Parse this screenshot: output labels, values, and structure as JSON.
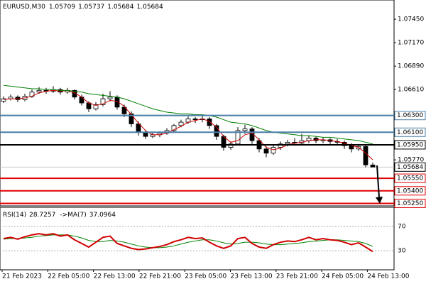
{
  "chart_data": {
    "type": "candlestick",
    "symbol": "EURUSD,M30",
    "ylim": [
      1.0522,
      1.0768
    ],
    "yticks": [
      {
        "value": 1.0745,
        "label": "1.07450"
      },
      {
        "value": 1.0717,
        "label": "1.07170"
      },
      {
        "value": 1.0689,
        "label": "1.06890"
      },
      {
        "value": 1.0661,
        "label": "1.06610"
      },
      {
        "value": 1.0577,
        "label": "1.05770"
      }
    ],
    "x_labels": [
      "21 Feb 2023",
      "22 Feb 05:00",
      "22 Feb 13:00",
      "22 Feb 21:00",
      "23 Feb 05:00",
      "23 Feb 13:00",
      "23 Feb 21:00",
      "24 Feb 05:00",
      "24 Feb 13:00"
    ],
    "candles": [
      [
        1.0647,
        1.0653,
        1.0645,
        1.065
      ],
      [
        1.065,
        1.0655,
        1.0648,
        1.0652
      ],
      [
        1.0652,
        1.0654,
        1.0646,
        1.0649
      ],
      [
        1.0649,
        1.0656,
        1.0647,
        1.0653
      ],
      [
        1.0653,
        1.0661,
        1.0651,
        1.0658
      ],
      [
        1.0658,
        1.0664,
        1.0656,
        1.066
      ],
      [
        1.066,
        1.0663,
        1.0656,
        1.0659
      ],
      [
        1.0659,
        1.0665,
        1.0657,
        1.0661
      ],
      [
        1.0661,
        1.0663,
        1.0655,
        1.0658
      ],
      [
        1.0658,
        1.0663,
        1.0656,
        1.066
      ],
      [
        1.066,
        1.0661,
        1.0649,
        1.0652
      ],
      [
        1.0652,
        1.0655,
        1.0642,
        1.0645
      ],
      [
        1.0645,
        1.0647,
        1.0634,
        1.0638
      ],
      [
        1.0638,
        1.0646,
        1.0636,
        1.0643
      ],
      [
        1.0643,
        1.0656,
        1.0641,
        1.065
      ],
      [
        1.065,
        1.0659,
        1.0647,
        1.0652
      ],
      [
        1.0652,
        1.0654,
        1.0637,
        1.064
      ],
      [
        1.064,
        1.0643,
        1.0628,
        1.0632
      ],
      [
        1.0632,
        1.0635,
        1.0616,
        1.062
      ],
      [
        1.062,
        1.0623,
        1.0606,
        1.061
      ],
      [
        1.061,
        1.0612,
        1.0602,
        1.0605
      ],
      [
        1.0605,
        1.061,
        1.0603,
        1.0607
      ],
      [
        1.0607,
        1.0611,
        1.0604,
        1.0609
      ],
      [
        1.0609,
        1.0615,
        1.0607,
        1.0612
      ],
      [
        1.0612,
        1.062,
        1.061,
        1.0618
      ],
      [
        1.0618,
        1.0625,
        1.0616,
        1.0622
      ],
      [
        1.0622,
        1.0629,
        1.062,
        1.0626
      ],
      [
        1.0626,
        1.0628,
        1.0621,
        1.0625
      ],
      [
        1.0625,
        1.063,
        1.0622,
        1.0626
      ],
      [
        1.0626,
        1.0628,
        1.0614,
        1.0618
      ],
      [
        1.0618,
        1.062,
        1.0601,
        1.0605
      ],
      [
        1.0605,
        1.0607,
        1.0588,
        1.0592
      ],
      [
        1.0592,
        1.0599,
        1.0589,
        1.0596
      ],
      [
        1.0596,
        1.0616,
        1.0594,
        1.0612
      ],
      [
        1.0612,
        1.0619,
        1.0608,
        1.0614
      ],
      [
        1.0614,
        1.0616,
        1.0596,
        1.06
      ],
      [
        1.06,
        1.0603,
        1.0586,
        1.059
      ],
      [
        1.059,
        1.0593,
        1.058,
        1.0585
      ],
      [
        1.0585,
        1.0595,
        1.0583,
        1.0592
      ],
      [
        1.0592,
        1.0599,
        1.0589,
        1.0596
      ],
      [
        1.0596,
        1.0601,
        1.0593,
        1.0598
      ],
      [
        1.0598,
        1.0603,
        1.0594,
        1.0597
      ],
      [
        1.0597,
        1.0608,
        1.0595,
        1.06
      ],
      [
        1.06,
        1.0606,
        1.0597,
        1.0603
      ],
      [
        1.0603,
        1.0605,
        1.0597,
        1.06
      ],
      [
        1.06,
        1.0604,
        1.0597,
        1.0601
      ],
      [
        1.0601,
        1.0603,
        1.0596,
        1.0599
      ],
      [
        1.0599,
        1.0602,
        1.0595,
        1.0598
      ],
      [
        1.0598,
        1.06,
        1.059,
        1.0594
      ],
      [
        1.0594,
        1.0597,
        1.0586,
        1.059
      ],
      [
        1.059,
        1.0596,
        1.0588,
        1.0593
      ],
      [
        1.0593,
        1.0595,
        1.0568,
        1.0571
      ],
      [
        1.05709,
        1.05737,
        1.05684,
        1.05684
      ]
    ],
    "series": [
      {
        "color": "#d00000",
        "values": [
          1.0649,
          1.065,
          1.065,
          1.0651,
          1.0653,
          1.0657,
          1.0659,
          1.066,
          1.0659,
          1.066,
          1.0657,
          1.0652,
          1.0645,
          1.0642,
          1.0644,
          1.0648,
          1.0647,
          1.0641,
          1.0631,
          1.0621,
          1.0612,
          1.0607,
          1.0607,
          1.0609,
          1.0613,
          1.0617,
          1.0622,
          1.0624,
          1.0626,
          1.0623,
          1.0616,
          1.0605,
          1.0598,
          1.06,
          1.0607,
          1.0609,
          1.0601,
          1.0592,
          1.0589,
          1.0591,
          1.0595,
          1.0597,
          1.0598,
          1.06,
          1.0601,
          1.0601,
          1.06,
          1.0599,
          1.0597,
          1.0594,
          1.0592,
          1.0585,
          1.0577
        ]
      },
      {
        "color": "#008000",
        "values": [
          1.0666,
          1.0665,
          1.0664,
          1.0663,
          1.0662,
          1.0662,
          1.0661,
          1.0661,
          1.066,
          1.066,
          1.0659,
          1.0658,
          1.0656,
          1.0655,
          1.0654,
          1.0653,
          1.0652,
          1.065,
          1.0647,
          1.0644,
          1.0641,
          1.0638,
          1.0636,
          1.0634,
          1.0633,
          1.0632,
          1.0632,
          1.0631,
          1.0631,
          1.063,
          1.0628,
          1.0625,
          1.0622,
          1.0621,
          1.062,
          1.0618,
          1.0615,
          1.0612,
          1.061,
          1.0609,
          1.0608,
          1.0607,
          1.0606,
          1.0606,
          1.0605,
          1.0604,
          1.0604,
          1.0603,
          1.0602,
          1.0601,
          1.06,
          1.0598,
          1.0596
        ]
      }
    ],
    "levels": [
      {
        "value": 1.063,
        "label": "1.06300",
        "color": "#4a7fa8"
      },
      {
        "value": 1.061,
        "label": "1.06100",
        "color": "#4a7fa8"
      },
      {
        "value": 1.0595,
        "label": "1.05950",
        "color": "#000000"
      },
      {
        "value": 1.0555,
        "label": "1.05550",
        "color": "#e00000"
      },
      {
        "value": 1.054,
        "label": "1.05400",
        "color": "#e00000"
      },
      {
        "value": 1.0525,
        "label": "1.05250",
        "color": "#e00000"
      }
    ],
    "rsi": {
      "name": "RSI(14)",
      "ma_name": "->MA(7)",
      "ylim": [
        0,
        100
      ],
      "yticks": [
        70,
        30
      ],
      "color": "#d00000",
      "ma_color": "#008000",
      "values": [
        50,
        52,
        49,
        53,
        56,
        58,
        56,
        58,
        54,
        56,
        48,
        42,
        36,
        44,
        52,
        54,
        42,
        38,
        34,
        32,
        33,
        35,
        37,
        40,
        45,
        48,
        52,
        50,
        51,
        44,
        38,
        34,
        38,
        50,
        52,
        42,
        36,
        34,
        40,
        44,
        46,
        45,
        48,
        52,
        48,
        50,
        48,
        47,
        44,
        40,
        43,
        36,
        28.7257
      ],
      "ma": [
        49,
        50,
        50,
        51,
        52,
        54,
        55,
        56,
        56,
        56,
        54,
        51,
        47,
        45,
        45,
        47,
        46,
        44,
        41,
        38,
        36,
        35,
        35,
        36,
        38,
        41,
        44,
        46,
        48,
        48,
        46,
        43,
        41,
        42,
        44,
        44,
        43,
        41,
        40,
        40,
        41,
        42,
        43,
        45,
        46,
        47,
        48,
        48,
        47,
        46,
        45,
        42,
        37.0964
      ]
    }
  }
}
